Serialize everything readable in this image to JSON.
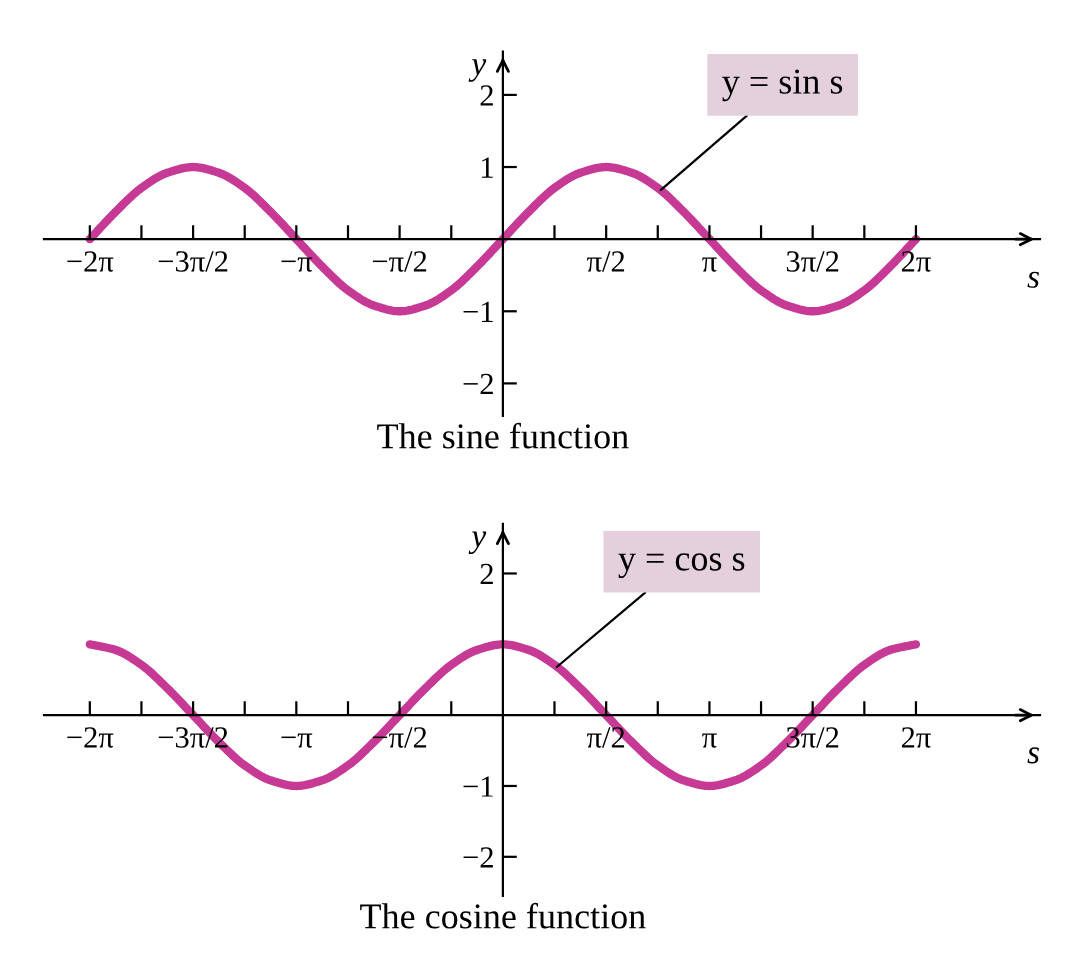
{
  "chart_data": [
    {
      "type": "line",
      "title": "The sine function",
      "xlabel": "s",
      "ylabel": "y",
      "grid": false,
      "legend": false,
      "x": [
        -6.283,
        -5.89,
        -5.498,
        -5.105,
        -4.712,
        -4.32,
        -3.927,
        -3.534,
        -3.142,
        -2.749,
        -2.356,
        -1.963,
        -1.571,
        -1.178,
        -0.785,
        -0.393,
        0,
        0.393,
        0.785,
        1.178,
        1.571,
        1.963,
        2.356,
        2.749,
        3.142,
        3.534,
        3.927,
        4.32,
        4.712,
        5.105,
        5.498,
        5.89,
        6.283
      ],
      "series": [
        {
          "color": "#c63a96",
          "values": [
            0,
            0.38,
            0.71,
            0.92,
            1,
            0.92,
            0.71,
            0.38,
            0,
            -0.38,
            -0.71,
            -0.92,
            -1,
            -0.92,
            -0.71,
            -0.38,
            0,
            0.38,
            0.71,
            0.92,
            1,
            0.92,
            0.71,
            0.38,
            0,
            -0.38,
            -0.71,
            -0.92,
            -1,
            -0.92,
            -0.71,
            -0.38,
            0
          ]
        }
      ],
      "xlim": [
        -6.98,
        8.17
      ],
      "ylim": [
        -2.45,
        2.6
      ],
      "xticks": [
        {
          "value": -6.283,
          "label": "−2π"
        },
        {
          "value": -5.498,
          "label": null
        },
        {
          "value": -4.712,
          "label": "−3π/2"
        },
        {
          "value": -3.927,
          "label": null
        },
        {
          "value": -3.142,
          "label": "−π"
        },
        {
          "value": -2.356,
          "label": null
        },
        {
          "value": -1.571,
          "label": "−π/2"
        },
        {
          "value": -0.785,
          "label": null
        },
        {
          "value": 0.785,
          "label": null
        },
        {
          "value": 1.571,
          "label": "π/2"
        },
        {
          "value": 2.356,
          "label": null
        },
        {
          "value": 3.142,
          "label": "π"
        },
        {
          "value": 3.927,
          "label": null
        },
        {
          "value": 4.712,
          "label": "3π/2"
        },
        {
          "value": 5.498,
          "label": null
        },
        {
          "value": 6.283,
          "label": "2π"
        }
      ],
      "yticks": [
        -2,
        -1,
        1,
        2
      ],
      "annotations": [
        {
          "text": "y = sin s",
          "x": 2.4,
          "y": 0.68
        }
      ]
    },
    {
      "type": "line",
      "title": "The cosine function",
      "xlabel": "s",
      "ylabel": "y",
      "grid": false,
      "legend": false,
      "x": [
        -6.283,
        -5.89,
        -5.498,
        -5.105,
        -4.712,
        -4.32,
        -3.927,
        -3.534,
        -3.142,
        -2.749,
        -2.356,
        -1.963,
        -1.571,
        -1.178,
        -0.785,
        -0.393,
        0,
        0.393,
        0.785,
        1.178,
        1.571,
        1.963,
        2.356,
        2.749,
        3.142,
        3.534,
        3.927,
        4.32,
        4.712,
        5.105,
        5.498,
        5.89,
        6.283
      ],
      "series": [
        {
          "color": "#c63a96",
          "values": [
            1,
            0.92,
            0.71,
            0.38,
            0,
            -0.38,
            -0.71,
            -0.92,
            -1,
            -0.92,
            -0.71,
            -0.38,
            0,
            0.38,
            0.71,
            0.92,
            1,
            0.92,
            0.71,
            0.38,
            0,
            -0.38,
            -0.71,
            -0.92,
            -1,
            -0.92,
            -0.71,
            -0.38,
            0,
            0.38,
            0.71,
            0.92,
            1
          ]
        }
      ],
      "xlim": [
        -6.98,
        8.17
      ],
      "ylim": [
        -2.55,
        2.7
      ],
      "xticks": [
        {
          "value": -6.283,
          "label": "−2π"
        },
        {
          "value": -5.498,
          "label": null
        },
        {
          "value": -4.712,
          "label": "−3π/2"
        },
        {
          "value": -3.927,
          "label": null
        },
        {
          "value": -3.142,
          "label": "−π"
        },
        {
          "value": -2.356,
          "label": null
        },
        {
          "value": -1.571,
          "label": "−π/2"
        },
        {
          "value": -0.785,
          "label": null
        },
        {
          "value": 0.785,
          "label": null
        },
        {
          "value": 1.571,
          "label": "π/2"
        },
        {
          "value": 2.356,
          "label": null
        },
        {
          "value": 3.142,
          "label": "π"
        },
        {
          "value": 3.927,
          "label": null
        },
        {
          "value": 4.712,
          "label": "3π/2"
        },
        {
          "value": 5.498,
          "label": null
        },
        {
          "value": 6.283,
          "label": "2π"
        }
      ],
      "yticks": [
        -2,
        -1,
        2
      ],
      "annotations": [
        {
          "text": "y = cos s",
          "x": 0.82,
          "y": 0.68
        }
      ]
    }
  ]
}
